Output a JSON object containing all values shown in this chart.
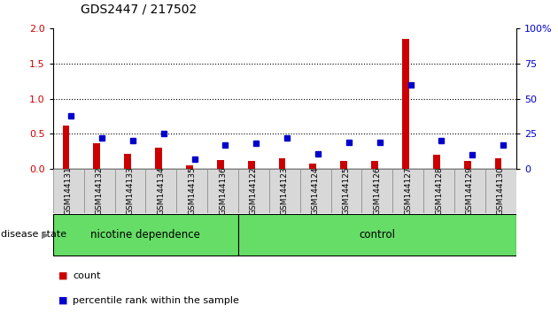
{
  "title": "GDS2447 / 217502",
  "samples": [
    "GSM144131",
    "GSM144132",
    "GSM144133",
    "GSM144134",
    "GSM144135",
    "GSM144136",
    "GSM144122",
    "GSM144123",
    "GSM144124",
    "GSM144125",
    "GSM144126",
    "GSM144127",
    "GSM144128",
    "GSM144129",
    "GSM144130"
  ],
  "count": [
    0.62,
    0.37,
    0.22,
    0.3,
    0.05,
    0.13,
    0.12,
    0.15,
    0.08,
    0.11,
    0.12,
    1.85,
    0.2,
    0.12,
    0.15
  ],
  "percentile": [
    38,
    22,
    20,
    25,
    7,
    17,
    18,
    22,
    11,
    19,
    19,
    60,
    20,
    10,
    17
  ],
  "groups": [
    {
      "label": "nicotine dependence",
      "start": 0,
      "end": 5,
      "color": "#66dd66"
    },
    {
      "label": "control",
      "start": 6,
      "end": 14,
      "color": "#66dd66"
    }
  ],
  "nicotine_count": 6,
  "ylim_left": [
    0,
    2
  ],
  "ylim_right": [
    0,
    100
  ],
  "yticks_left": [
    0,
    0.5,
    1.0,
    1.5,
    2.0
  ],
  "yticks_right": [
    0,
    25,
    50,
    75,
    100
  ],
  "bar_color_red": "#cc0000",
  "dot_color_blue": "#0000cc",
  "bg_color": "#d8d8d8",
  "label_disease": "disease state",
  "legend_count": "count",
  "legend_pct": "percentile rank within the sample"
}
